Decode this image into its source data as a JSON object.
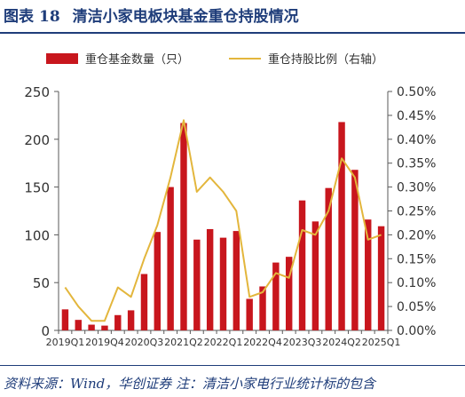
{
  "header": {
    "figure_label": "图表",
    "figure_number": "18",
    "title": "清洁小家电板块基金重仓持股情况"
  },
  "footer": {
    "source": "资料来源：Wind，华创证券  注：清洁小家电行业统计标的包含"
  },
  "colors": {
    "title": "#1f3d7a",
    "bar": "#c8161d",
    "line": "#e3b63c",
    "axis": "#595959"
  },
  "chart_data": {
    "type": "bar",
    "categories": [
      "2019Q1",
      "2019Q2",
      "2019Q3",
      "2019Q4",
      "2020Q1",
      "2020Q2",
      "2020Q3",
      "2020Q4",
      "2021Q1",
      "2021Q2",
      "2021Q3",
      "2021Q4",
      "2022Q1",
      "2022Q2",
      "2022Q3",
      "2022Q4",
      "2023Q1",
      "2023Q2",
      "2023Q3",
      "2023Q4",
      "2024Q1",
      "2024Q2",
      "2024Q3",
      "2024Q4",
      "2025Q1"
    ],
    "x_tick_labels": [
      "2019Q1",
      "2019Q4",
      "2020Q3",
      "2021Q2",
      "2022Q1",
      "2022Q4",
      "2023Q3",
      "2024Q2",
      "2025Q1"
    ],
    "x_tick_indices": [
      0,
      3,
      6,
      9,
      12,
      15,
      18,
      21,
      24
    ],
    "series": [
      {
        "name": "重仓基金数量（只）",
        "type": "bar",
        "axis": "left",
        "values": [
          22,
          11,
          6,
          5,
          16,
          21,
          59,
          103,
          150,
          217,
          95,
          106,
          97,
          104,
          33,
          46,
          71,
          77,
          136,
          114,
          149,
          218,
          168,
          116,
          109
        ]
      },
      {
        "name": "重仓持股比例（右轴）",
        "type": "line",
        "axis": "right",
        "values": [
          0.0009,
          0.0005,
          0.0002,
          0.0002,
          0.0009,
          0.0007,
          0.0015,
          0.0022,
          0.0032,
          0.0044,
          0.0029,
          0.0032,
          0.0029,
          0.0025,
          0.0007,
          0.0008,
          0.0012,
          0.0011,
          0.0021,
          0.002,
          0.0025,
          0.0036,
          0.0032,
          0.0019,
          0.002
        ]
      }
    ],
    "y_left": {
      "ylim": [
        0,
        250
      ],
      "ticks": [
        0,
        50,
        100,
        150,
        200,
        250
      ],
      "tick_labels": [
        "0",
        "50",
        "100",
        "150",
        "200",
        "250"
      ]
    },
    "y_right": {
      "ylim": [
        0,
        0.005
      ],
      "ticks": [
        0,
        0.0005,
        0.001,
        0.0015,
        0.002,
        0.0025,
        0.003,
        0.0035,
        0.004,
        0.0045,
        0.005
      ],
      "tick_labels": [
        "0.00%",
        "0.05%",
        "0.10%",
        "0.15%",
        "0.20%",
        "0.25%",
        "0.30%",
        "0.35%",
        "0.40%",
        "0.45%",
        "0.50%"
      ]
    },
    "grid": false,
    "legend": "top"
  }
}
